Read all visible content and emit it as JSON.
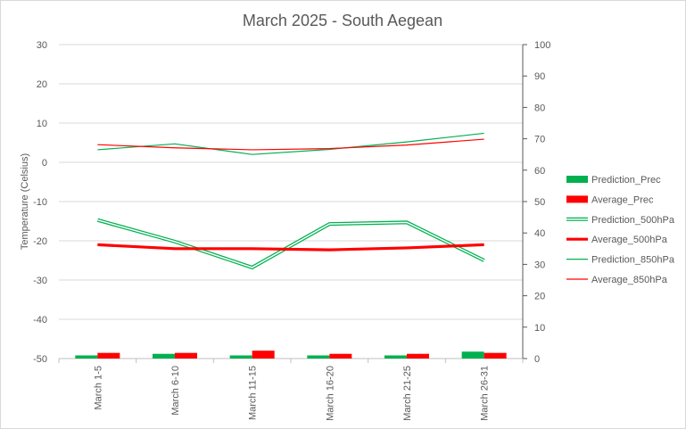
{
  "chart_data": {
    "type": "bar",
    "title": "March 2025 - South Aegean",
    "ylabel": "Temperature (Celsius)",
    "y2label": "",
    "ylim": [
      -50,
      30
    ],
    "y2lim": [
      0,
      100
    ],
    "y_ticks": [
      "30",
      "20",
      "10",
      "0",
      "-10",
      "-20",
      "-30",
      "-40",
      "-50"
    ],
    "y2_ticks": [
      "100",
      "90",
      "80",
      "70",
      "60",
      "50",
      "40",
      "30",
      "20",
      "10",
      "0"
    ],
    "categories": [
      "March 1-5",
      "March 6-10",
      "March 11-15",
      "March 16-20",
      "March 21-25",
      "March 26-31"
    ],
    "grid": true,
    "legend_position": "right",
    "series": [
      {
        "name": "Prediction_Prec",
        "kind": "bar",
        "axis": "right",
        "color": "#00b050",
        "values": [
          1.0,
          1.5,
          1.0,
          1.0,
          1.0,
          2.2
        ]
      },
      {
        "name": "Average_Prec",
        "kind": "bar",
        "axis": "right",
        "color": "#ff0000",
        "values": [
          1.8,
          1.8,
          2.5,
          1.5,
          1.5,
          1.8
        ]
      },
      {
        "name": "Prediction_500hPa",
        "kind": "line",
        "style": "double",
        "axis": "left",
        "color": "#00b050",
        "values": [
          -14.7,
          -20.2,
          -26.8,
          -15.7,
          -15.3,
          -25.0
        ]
      },
      {
        "name": "Average_500hPa",
        "kind": "line",
        "style": "thick",
        "axis": "left",
        "color": "#ff0000",
        "values": [
          -21.0,
          -22.0,
          -22.0,
          -22.3,
          -21.8,
          -21.0
        ]
      },
      {
        "name": "Prediction_850hPa",
        "kind": "line",
        "style": "thin",
        "axis": "left",
        "color": "#00b050",
        "values": [
          3.2,
          4.7,
          2.0,
          3.3,
          5.2,
          7.4
        ]
      },
      {
        "name": "Average_850hPa",
        "kind": "line",
        "style": "thin",
        "axis": "left",
        "color": "#ff0000",
        "values": [
          4.5,
          3.7,
          3.2,
          3.5,
          4.4,
          5.9
        ]
      }
    ]
  }
}
